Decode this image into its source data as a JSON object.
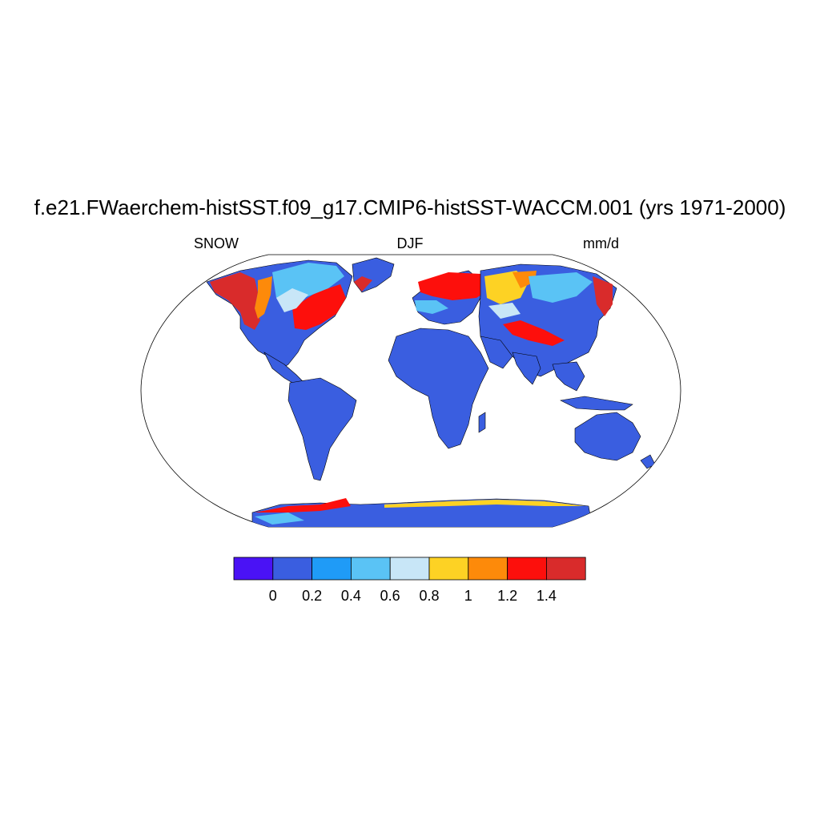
{
  "title": "f.e21.FWaerchem-histSST.f09_g17.CMIP6-histSST-WACCM.001 (yrs 1971-2000)",
  "subtitle_left": "SNOW",
  "subtitle_center": "DJF",
  "subtitle_right": "mm/d",
  "colorbar": {
    "colors": [
      "#4a12f5",
      "#3a5ee0",
      "#1f9bf7",
      "#5ac3f5",
      "#c8e6f7",
      "#fdd224",
      "#fd8a0a",
      "#fd0f0c",
      "#d92b2b"
    ],
    "labels": [
      "0",
      "0.2",
      "0.4",
      "0.6",
      "0.8",
      "1",
      "1.2",
      "1.4"
    ]
  },
  "colors": {
    "land_base": "#3a5ee0",
    "coastline": "#000000"
  }
}
